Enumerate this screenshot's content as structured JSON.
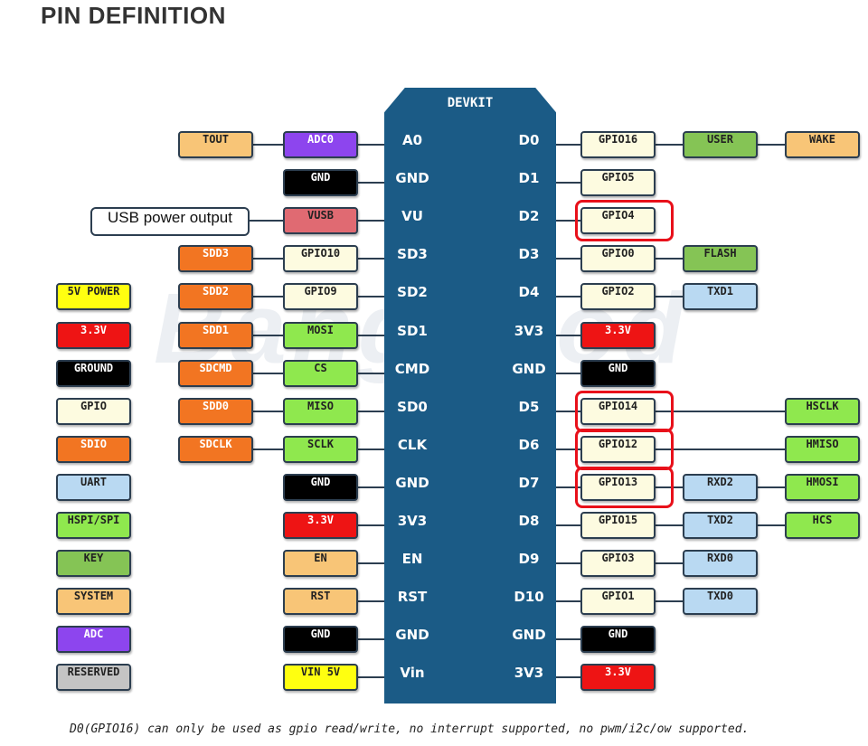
{
  "title": "PIN DEFINITION",
  "board_title": "DEVKIT",
  "watermark": "Banggood",
  "usb_note": "USB power output",
  "footer": "D0(GPIO16) can only be used as gpio read/write, no interrupt supported, no pwm/i2c/ow supported.",
  "colors": {
    "power5v": "#ffff10",
    "power33": "#ee1414",
    "ground": "#000000",
    "gpio": "#fdfbe0",
    "sdio": "#f27522",
    "uart": "#b9d9f2",
    "hspi": "#8fe84e",
    "key": "#85c455",
    "system": "#f8c577",
    "adc": "#8d45ee",
    "reserved": "#c4c4c4",
    "vusb": "#e06a72"
  },
  "board_pins_left": [
    "A0",
    "GND",
    "VU",
    "SD3",
    "SD2",
    "SD1",
    "CMD",
    "SD0",
    "CLK",
    "GND",
    "3V3",
    "EN",
    "RST",
    "GND",
    "Vin"
  ],
  "board_pins_right": [
    "D0",
    "D1",
    "D2",
    "D3",
    "D4",
    "3V3",
    "GND",
    "D5",
    "D6",
    "D7",
    "D8",
    "D9",
    "D10",
    "GND",
    "3V3"
  ],
  "left_outer": [
    {
      "row": 0,
      "label": "TOUT",
      "type": "system"
    },
    {
      "row": 3,
      "label": "SDD3",
      "type": "sdio"
    },
    {
      "row": 4,
      "label": "SDD2",
      "type": "sdio"
    },
    {
      "row": 5,
      "label": "SDD1",
      "type": "sdio"
    },
    {
      "row": 6,
      "label": "SDCMD",
      "type": "sdio"
    },
    {
      "row": 7,
      "label": "SDD0",
      "type": "sdio"
    },
    {
      "row": 8,
      "label": "SDCLK",
      "type": "sdio"
    }
  ],
  "left_inner": [
    {
      "label": "ADC0",
      "type": "adc"
    },
    {
      "label": "GND",
      "type": "ground"
    },
    {
      "label": "VUSB",
      "type": "vusb"
    },
    {
      "label": "GPIO10",
      "type": "gpio"
    },
    {
      "label": "GPIO9",
      "type": "gpio"
    },
    {
      "label": "MOSI",
      "type": "hspi"
    },
    {
      "label": "CS",
      "type": "hspi"
    },
    {
      "label": "MISO",
      "type": "hspi"
    },
    {
      "label": "SCLK",
      "type": "hspi"
    },
    {
      "label": "GND",
      "type": "ground"
    },
    {
      "label": "3.3V",
      "type": "power33"
    },
    {
      "label": "EN",
      "type": "system"
    },
    {
      "label": "RST",
      "type": "system"
    },
    {
      "label": "GND",
      "type": "ground"
    },
    {
      "label": "VIN 5V",
      "type": "power5v"
    }
  ],
  "right_inner": [
    {
      "label": "GPIO16",
      "type": "gpio"
    },
    {
      "label": "GPIO5",
      "type": "gpio"
    },
    {
      "label": "GPIO4",
      "type": "gpio",
      "highlighted": true
    },
    {
      "label": "GPIO0",
      "type": "gpio"
    },
    {
      "label": "GPIO2",
      "type": "gpio"
    },
    {
      "label": "3.3V",
      "type": "power33"
    },
    {
      "label": "GND",
      "type": "ground"
    },
    {
      "label": "GPIO14",
      "type": "gpio",
      "highlighted": true
    },
    {
      "label": "GPIO12",
      "type": "gpio",
      "highlighted": true
    },
    {
      "label": "GPIO13",
      "type": "gpio",
      "highlighted": true
    },
    {
      "label": "GPIO15",
      "type": "gpio"
    },
    {
      "label": "GPIO3",
      "type": "gpio"
    },
    {
      "label": "GPIO1",
      "type": "gpio"
    },
    {
      "label": "GND",
      "type": "ground"
    },
    {
      "label": "3.3V",
      "type": "power33"
    }
  ],
  "right_mid": [
    {
      "row": 0,
      "label": "USER",
      "type": "key"
    },
    {
      "row": 3,
      "label": "FLASH",
      "type": "key"
    },
    {
      "row": 4,
      "label": "TXD1",
      "type": "uart"
    },
    {
      "row": 9,
      "label": "RXD2",
      "type": "uart"
    },
    {
      "row": 10,
      "label": "TXD2",
      "type": "uart"
    },
    {
      "row": 11,
      "label": "RXD0",
      "type": "uart"
    },
    {
      "row": 12,
      "label": "TXD0",
      "type": "uart"
    }
  ],
  "right_outer": [
    {
      "row": 0,
      "label": "WAKE",
      "type": "system"
    },
    {
      "row": 7,
      "label": "HSCLK",
      "type": "hspi"
    },
    {
      "row": 8,
      "label": "HMISO",
      "type": "hspi"
    },
    {
      "row": 9,
      "label": "HMOSI",
      "type": "hspi"
    },
    {
      "row": 10,
      "label": "HCS",
      "type": "hspi"
    }
  ],
  "legend": [
    {
      "label": "5V POWER",
      "type": "power5v"
    },
    {
      "label": "3.3V",
      "type": "power33"
    },
    {
      "label": "GROUND",
      "type": "ground"
    },
    {
      "label": "GPIO",
      "type": "gpio"
    },
    {
      "label": "SDIO",
      "type": "sdio"
    },
    {
      "label": "UART",
      "type": "uart"
    },
    {
      "label": "HSPI/SPI",
      "type": "hspi"
    },
    {
      "label": "KEY",
      "type": "key"
    },
    {
      "label": "SYSTEM",
      "type": "system"
    },
    {
      "label": "ADC",
      "type": "adc"
    },
    {
      "label": "RESERVED",
      "type": "reserved"
    }
  ]
}
